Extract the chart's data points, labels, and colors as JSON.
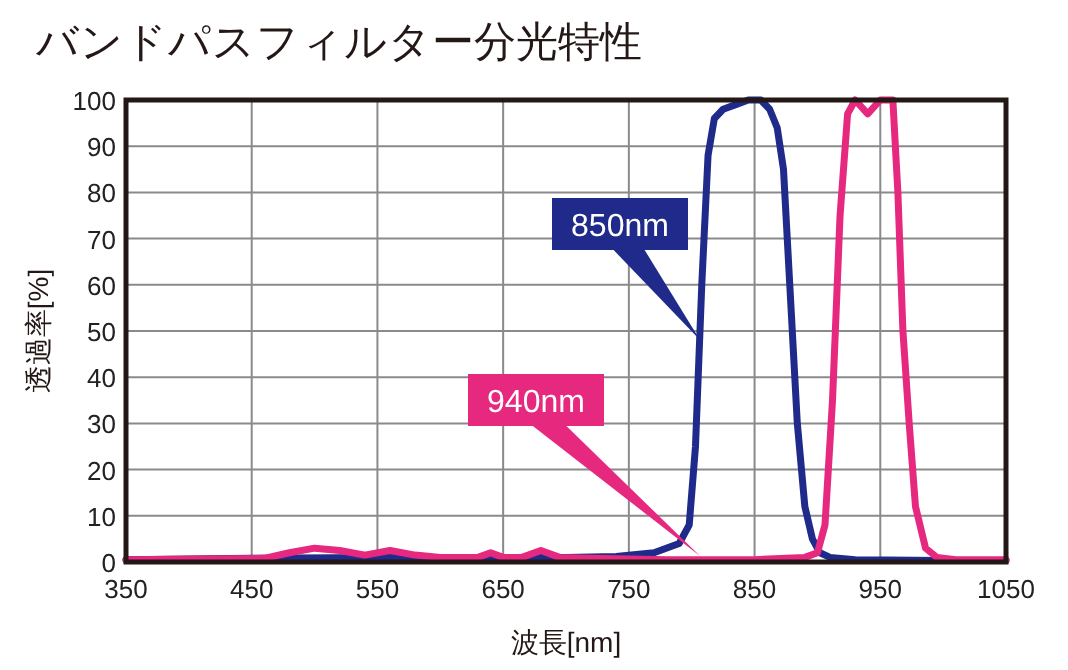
{
  "chart_data": {
    "type": "line",
    "title": "バンドパスフィルター分光特性",
    "xlabel": "波長[nm]",
    "ylabel": "透過率[%]",
    "xlim": [
      350,
      1050
    ],
    "ylim": [
      0,
      100
    ],
    "xticks": [
      350,
      450,
      550,
      650,
      750,
      850,
      950,
      1050
    ],
    "yticks": [
      0,
      10,
      20,
      30,
      40,
      50,
      60,
      70,
      80,
      90,
      100
    ],
    "grid": true,
    "series": [
      {
        "color": "#1f2a8a",
        "x": [
          350,
          450,
          550,
          650,
          700,
          740,
          770,
          790,
          798,
          803,
          808,
          813,
          818,
          825,
          835,
          845,
          855,
          862,
          868,
          873,
          878,
          884,
          890,
          896,
          902,
          910,
          930,
          1000,
          1050
        ],
        "values": [
          0.5,
          0.8,
          1,
          1,
          1,
          1.2,
          2,
          4,
          8,
          25,
          60,
          88,
          96,
          98,
          99,
          100,
          100,
          98,
          94,
          85,
          60,
          30,
          12,
          5,
          2,
          1,
          0.5,
          0.3,
          0.3
        ]
      },
      {
        "color": "#e6287f",
        "x": [
          350,
          460,
          480,
          500,
          520,
          540,
          560,
          580,
          600,
          630,
          640,
          650,
          665,
          680,
          695,
          720,
          780,
          850,
          890,
          900,
          906,
          912,
          918,
          924,
          930,
          940,
          950,
          960,
          964,
          968,
          973,
          978,
          986,
          995,
          1010,
          1050
        ],
        "values": [
          0.5,
          0.8,
          2,
          3,
          2.5,
          1.5,
          2.5,
          1.5,
          1,
          1,
          2,
          1,
          1,
          2.5,
          1,
          0.8,
          0.5,
          0.5,
          1,
          2,
          8,
          35,
          75,
          97,
          100,
          97,
          100,
          100,
          80,
          50,
          30,
          12,
          3,
          1,
          0.5,
          0.5
        ]
      }
    ],
    "annotations": [
      "850nm",
      "940nm"
    ]
  }
}
